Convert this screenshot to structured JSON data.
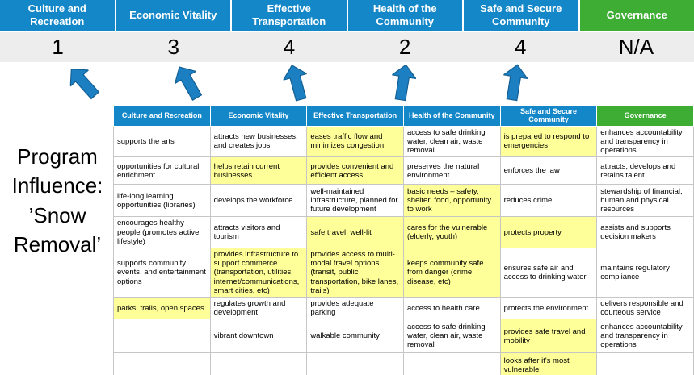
{
  "title": {
    "text": "Program Influence: ’Snow Removal’"
  },
  "colors": {
    "header_blue": "#1487c9",
    "header_green": "#3dad33",
    "highlight": "#ffff99",
    "score_bg": "#ededed",
    "arrow": "#1b7fc2",
    "border": "#c6c6c6"
  },
  "categories": [
    {
      "label": "Culture and Recreation",
      "score": "1",
      "type": "blue"
    },
    {
      "label": "Economic Vitality",
      "score": "3",
      "type": "blue"
    },
    {
      "label": "Effective Transportation",
      "score": "4",
      "type": "blue"
    },
    {
      "label": "Health of the Community",
      "score": "2",
      "type": "blue"
    },
    {
      "label": "Safe and Secure Community",
      "score": "4",
      "type": "blue"
    },
    {
      "label": "Governance",
      "score": "N/A",
      "type": "green"
    }
  ],
  "arrows": {
    "count": 5
  },
  "matrix": {
    "headers": [
      "Culture and Recreation",
      "Economic Vitality",
      "Effective Transportation",
      "Health of the Community",
      "Safe and Secure Community",
      "Governance"
    ],
    "rows": [
      [
        {
          "text": "supports the arts",
          "highlight": false
        },
        {
          "text": "attracts new businesses, and creates jobs",
          "highlight": false
        },
        {
          "text": "eases traffic flow and minimizes congestion",
          "highlight": true
        },
        {
          "text": "access to safe drinking water, clean air, waste removal",
          "highlight": false
        },
        {
          "text": "is prepared to respond to emergencies",
          "highlight": true
        },
        {
          "text": "enhances accountability and transparency in operations",
          "highlight": false
        }
      ],
      [
        {
          "text": "opportunities for cultural enrichment",
          "highlight": false
        },
        {
          "text": "helps retain current businesses",
          "highlight": true
        },
        {
          "text": "provides convenient and efficient access",
          "highlight": true
        },
        {
          "text": "preserves the natural environment",
          "highlight": false
        },
        {
          "text": "enforces the law",
          "highlight": false
        },
        {
          "text": "attracts, develops and retains talent",
          "highlight": false
        }
      ],
      [
        {
          "text": "life-long learning opportunities (libraries)",
          "highlight": false
        },
        {
          "text": "develops the workforce",
          "highlight": false
        },
        {
          "text": "well-maintained infrastructure, planned for future development",
          "highlight": false
        },
        {
          "text": "basic needs – safety, shelter, food, opportunity to work",
          "highlight": true
        },
        {
          "text": "reduces crime",
          "highlight": false
        },
        {
          "text": "stewardship of financial, human and physical resources",
          "highlight": false
        }
      ],
      [
        {
          "text": "encourages healthy people (promotes active lifestyle)",
          "highlight": false
        },
        {
          "text": "attracts visitors and tourism",
          "highlight": false
        },
        {
          "text": "safe travel, well-lit",
          "highlight": true
        },
        {
          "text": "cares for the vulnerable (elderly, youth)",
          "highlight": true
        },
        {
          "text": "protects property",
          "highlight": true
        },
        {
          "text": "assists and supports decision makers",
          "highlight": false
        }
      ],
      [
        {
          "text": "supports community events, and entertainment options",
          "highlight": false
        },
        {
          "text": "provides infrastructure to support commerce (transportation, utilities, internet/communications, smart cities, etc)",
          "highlight": true
        },
        {
          "text": "provides access to multi-modal travel options (transit, public transportation, bike lanes, trails)",
          "highlight": true
        },
        {
          "text": "keeps community safe from danger (crime, disease, etc)",
          "highlight": true
        },
        {
          "text": "ensures safe air and access to drinking water",
          "highlight": false
        },
        {
          "text": "maintains regulatory compliance",
          "highlight": false
        }
      ],
      [
        {
          "text": "parks, trails, open spaces",
          "highlight": true
        },
        {
          "text": "regulates growth and development",
          "highlight": false
        },
        {
          "text": "provides adequate parking",
          "highlight": false
        },
        {
          "text": "access to health care",
          "highlight": false
        },
        {
          "text": "protects the environment",
          "highlight": false
        },
        {
          "text": "delivers responsible and courteous service",
          "highlight": false
        }
      ],
      [
        {
          "text": "",
          "highlight": false
        },
        {
          "text": "vibrant downtown",
          "highlight": false
        },
        {
          "text": "walkable community",
          "highlight": false
        },
        {
          "text": "access to safe drinking water, clean air, waste removal",
          "highlight": false
        },
        {
          "text": "provides safe travel and mobility",
          "highlight": true
        },
        {
          "text": "enhances accountability and transparency in operations",
          "highlight": false
        }
      ],
      [
        {
          "text": "",
          "highlight": false
        },
        {
          "text": "",
          "highlight": false
        },
        {
          "text": "",
          "highlight": false
        },
        {
          "text": "",
          "highlight": false
        },
        {
          "text": "looks after it's most vulnerable",
          "highlight": true
        },
        {
          "text": "",
          "highlight": false
        }
      ]
    ]
  }
}
